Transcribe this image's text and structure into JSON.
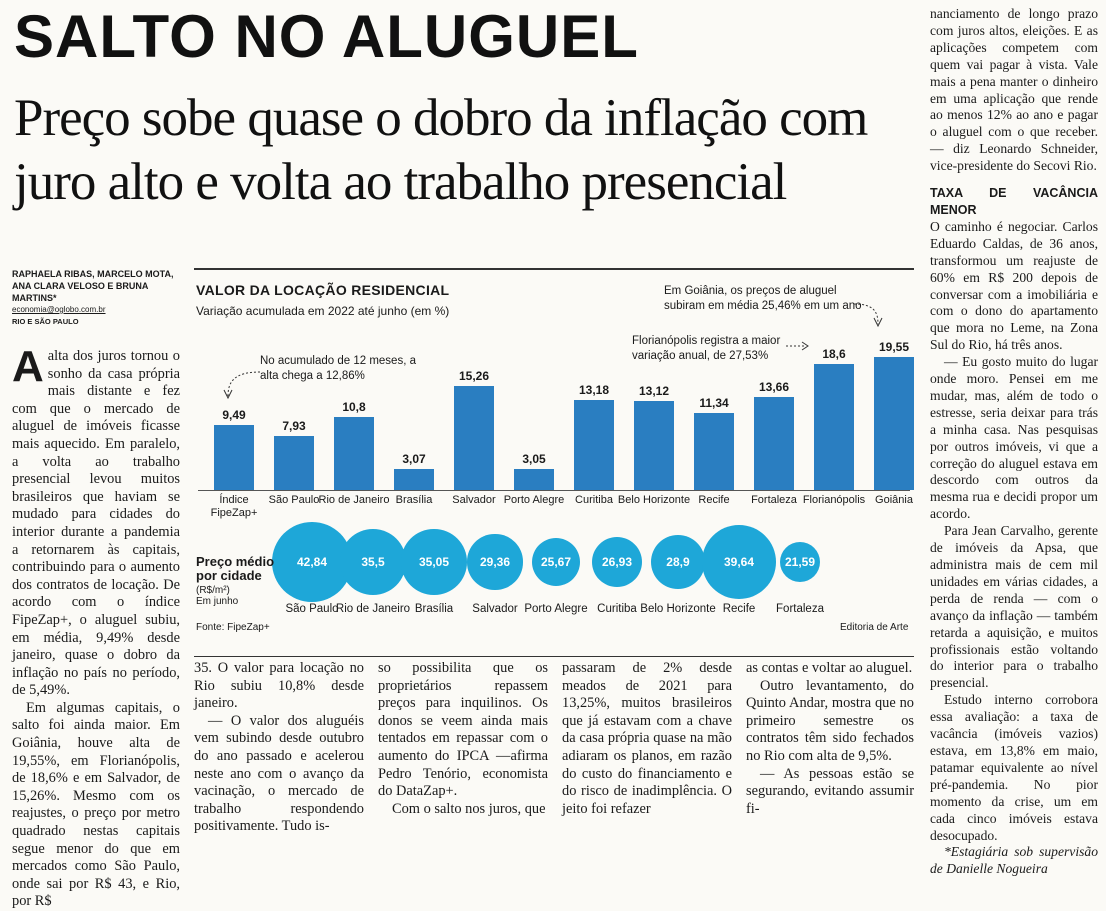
{
  "headline": "SALTO NO ALUGUEL",
  "subheadline": "Preço sobe quase o dobro da inflação com juro alto e volta ao trabalho presencial",
  "byline": {
    "authors": "RAPHAELA RIBAS, MARCELO MOTA, ANA CLARA VELOSO E BRUNA MARTINS*",
    "email": "economia@oglobo.com.br",
    "city": "RIO E SÃO PAULO"
  },
  "col1": {
    "dropcap": "A",
    "p1": "alta dos juros tornou o sonho da casa própria mais distante e fez com que o mercado de aluguel de imóveis ficasse mais aquecido. Em paralelo, a volta ao trabalho presencial levou muitos brasileiros que haviam se mudado para cidades do interior durante a pandemia a retornarem às capitais, contribuindo para o aumento dos contratos de locação. De acordo com o índice FipeZap+, o aluguel subiu, em média, 9,49% desde janeiro, quase o dobro da inflação no país no período, de 5,49%.",
    "p2": "Em algumas capitais, o salto foi ainda maior. Em Goiânia, houve alta de 19,55%, em Florianópolis, de 18,6% e em Salvador, de 15,26%. Mesmo com os reajustes, o preço por metro quadrado nestas capitais segue menor do que em mercados como São Paulo, onde sai por R$ 43, e Rio, por R$"
  },
  "col2": {
    "p1": "35. O valor para locação no Rio subiu 10,8% desde janeiro.",
    "p2": "— O valor dos aluguéis vem subindo desde outubro do ano passado e acelerou neste ano com o avanço da vacinação, o mercado de trabalho respondendo positivamente. Tudo is-"
  },
  "col3": {
    "p1": "so possibilita que os proprietários repassem preços para inquilinos. Os donos se veem ainda mais tentados em repassar com o aumento do IPCA —afirma Pedro Tenório, economista do DataZap+.",
    "p2": "Com o salto nos juros, que"
  },
  "col4": {
    "p1": "passaram de 2% desde meados de 2021 para 13,25%, muitos brasileiros que já estavam com a chave da casa própria quase na mão adiaram os planos, em razão do custo do financiamento e do risco de inadimplência. O jeito foi refazer"
  },
  "col5": {
    "p1": "as contas e voltar ao aluguel.",
    "p2": "Outro levantamento, do Quinto Andar, mostra que no primeiro semestre os contratos têm sido fechados no Rio com alta de 9,5%.",
    "p3": "— As pessoas estão se segurando, evitando assumir fi-"
  },
  "col6": {
    "p1": "nanciamento de longo prazo com juros altos, eleições. E as aplicações competem com quem vai pagar à vista. Vale mais a pena manter o dinheiro em uma aplicação que rende ao menos 12% ao ano e pagar o aluguel com o que receber. — diz Leonardo Schneider, vice-presidente do Secovi Rio.",
    "section": "TAXA DE VACÂNCIA MENOR",
    "p2": "O caminho é negociar. Carlos Eduardo Caldas, de 36 anos, transformou um reajuste de 60% em R$ 200 depois de conversar com a imobiliária e com o dono do apartamento que mora no Leme, na Zona Sul do Rio, há três anos.",
    "p3": "— Eu gosto muito do lugar onde moro. Pensei em me mudar, mas, além de todo o estresse, seria deixar para trás a minha casa. Nas pesquisas por outros imóveis, vi que a correção do aluguel estava em descordo com outros da mesma rua e decidi propor um acordo.",
    "p4": "Para Jean Carvalho, gerente de imóveis da Apsa, que administra mais de cem mil unidades em várias cidades, a perda de renda — com o avanço da inflação — também retarda a aquisição, e muitos profissionais estão voltando do interior para o trabalho presencial.",
    "p5": "Estudo interno corrobora essa avaliação: a taxa de vacância (imóveis vazios) estava, em 13,8% em maio, patamar equivalente ao nível pré-pandemia. No pior momento da crise, um em cada cinco imóveis estava desocupado.",
    "note": "*Estagiária sob supervisão de Danielle Nogueira"
  },
  "chart_data": {
    "type": "bar",
    "title": "VALOR DA LOCAÇÃO RESIDENCIAL",
    "subtitle": "Variação acumulada em 2022 até junho (em %)",
    "categories": [
      "Índice FipeZap+",
      "São Paulo",
      "Rio de Janeiro",
      "Brasília",
      "Salvador",
      "Porto Alegre",
      "Curitiba",
      "Belo Horizonte",
      "Recife",
      "Fortaleza",
      "Florianópolis",
      "Goiânia"
    ],
    "values": [
      9.49,
      7.93,
      10.8,
      3.07,
      15.26,
      3.05,
      13.18,
      13.12,
      11.34,
      13.66,
      18.6,
      19.55
    ],
    "value_labels": [
      "9,49",
      "7,93",
      "10,8",
      "3,07",
      "15,26",
      "3,05",
      "13,18",
      "13,12",
      "11,34",
      "13,66",
      "18,6",
      "19,55"
    ],
    "annotations": {
      "fipezap": "No acumulado de 12 meses, a alta chega a 12,86%",
      "florianopolis": "Florianópolis registra a maior variação anual, de 27,53%",
      "goiania": "Em Goiânia, os preços de aluguel subiram em média 25,46% em um ano"
    },
    "price": {
      "title": "Preço médio por cidade",
      "unit": "(R$/m²)",
      "period": "Em junho",
      "cities": [
        "São Paulo",
        "Rio de Janeiro",
        "Brasília",
        "Salvador",
        "Porto Alegre",
        "Curitiba",
        "Belo Horizonte",
        "Recife",
        "Fortaleza"
      ],
      "values": [
        42.84,
        35.5,
        35.05,
        29.36,
        25.67,
        26.93,
        28.9,
        39.64,
        21.59
      ],
      "labels": [
        "42,84",
        "35,5",
        "35,05",
        "29,36",
        "25,67",
        "26,93",
        "28,9",
        "39,64",
        "21,59"
      ]
    },
    "source": "Fonte: FipeZap+",
    "credit": "Editoria de Arte",
    "colors": {
      "bar": "#2a7ec1",
      "circle": "#1ea7d8"
    }
  }
}
